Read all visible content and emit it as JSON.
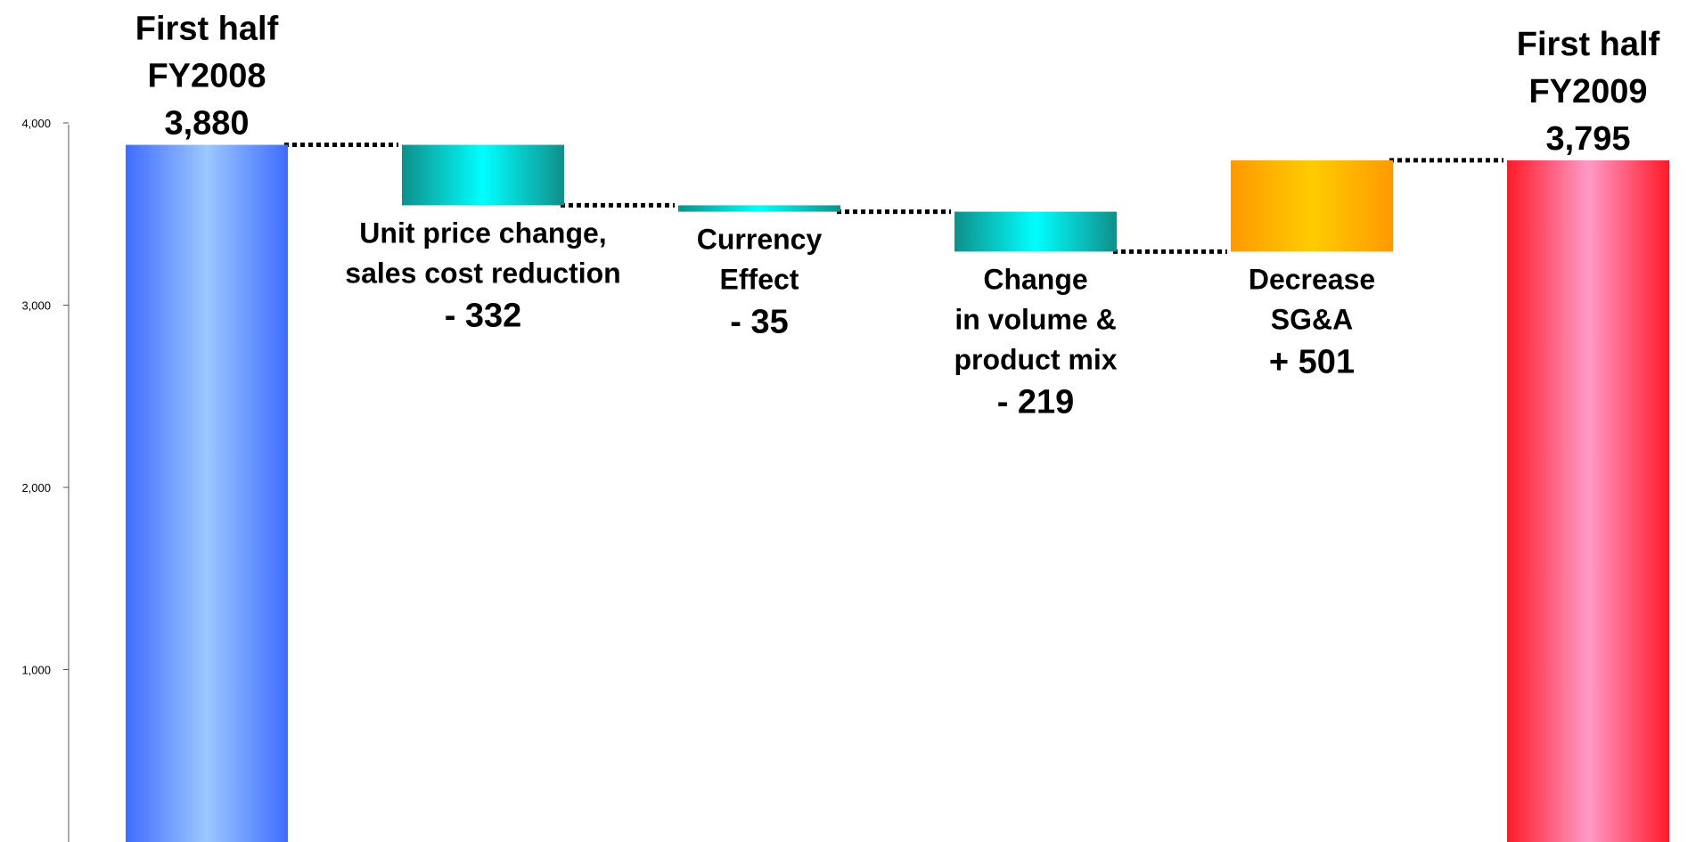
{
  "chart_data": {
    "type": "waterfall",
    "ylim": [
      0,
      4000
    ],
    "yticks": [
      1000,
      2000,
      3000,
      4000
    ],
    "ytick_labels": [
      "1,000",
      "2,000",
      "3,000",
      "4,000"
    ],
    "grid": false,
    "steps": [
      {
        "kind": "total",
        "label_lines": [
          "First half",
          "FY2008",
          "3,880"
        ],
        "start": 0,
        "end": 3880,
        "value": 3880,
        "color": "#4a7fff"
      },
      {
        "kind": "delta",
        "label_lines": [
          "Unit price change,",
          "sales cost reduction",
          "- 332"
        ],
        "start": 3880,
        "end": 3548,
        "value": -332,
        "color": "#1bb5b3"
      },
      {
        "kind": "delta",
        "label_lines": [
          "Currency",
          "Effect",
          "- 35"
        ],
        "start": 3548,
        "end": 3513,
        "value": -35,
        "color": "#1bb5b3"
      },
      {
        "kind": "delta",
        "label_lines": [
          "Change",
          "in volume &",
          "product mix",
          "- 219"
        ],
        "start": 3513,
        "end": 3294,
        "value": -219,
        "color": "#1bb5b3"
      },
      {
        "kind": "delta",
        "label_lines": [
          "Decrease",
          "SG&A",
          "+ 501"
        ],
        "start": 3294,
        "end": 3795,
        "value": 501,
        "color": "#ffaa00"
      },
      {
        "kind": "total",
        "label_lines": [
          "First half",
          "FY2009",
          "3,795"
        ],
        "start": 0,
        "end": 3795,
        "value": 3795,
        "color": "#ff2a3a"
      }
    ]
  }
}
